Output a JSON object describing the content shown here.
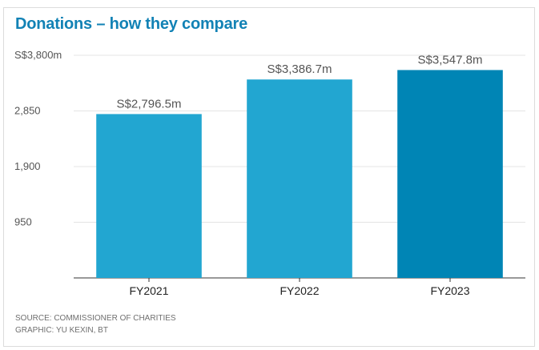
{
  "title": "Donations – how they compare",
  "footer": {
    "source": "SOURCE: COMMISSIONER OF CHARITIES",
    "credit": "GRAPHIC: YU KEXIN, BT"
  },
  "chart_data": {
    "type": "bar",
    "categories": [
      "FY2021",
      "FY2022",
      "FY2023"
    ],
    "values": [
      2796.5,
      3386.7,
      3547.8
    ],
    "data_labels": [
      "S$2,796.5m",
      "S$3,386.7m",
      "S$3,547.8m"
    ],
    "bar_colors": [
      "#22a6d1",
      "#22a6d1",
      "#0085b5"
    ],
    "ylim": [
      0,
      3800
    ],
    "yticks": [
      950,
      1900,
      2850,
      3800
    ],
    "ytick_labels": [
      "950",
      "1,900",
      "2,850",
      "S$3,800m"
    ],
    "grid": true,
    "legend": "none",
    "xlabel": "",
    "ylabel": ""
  }
}
